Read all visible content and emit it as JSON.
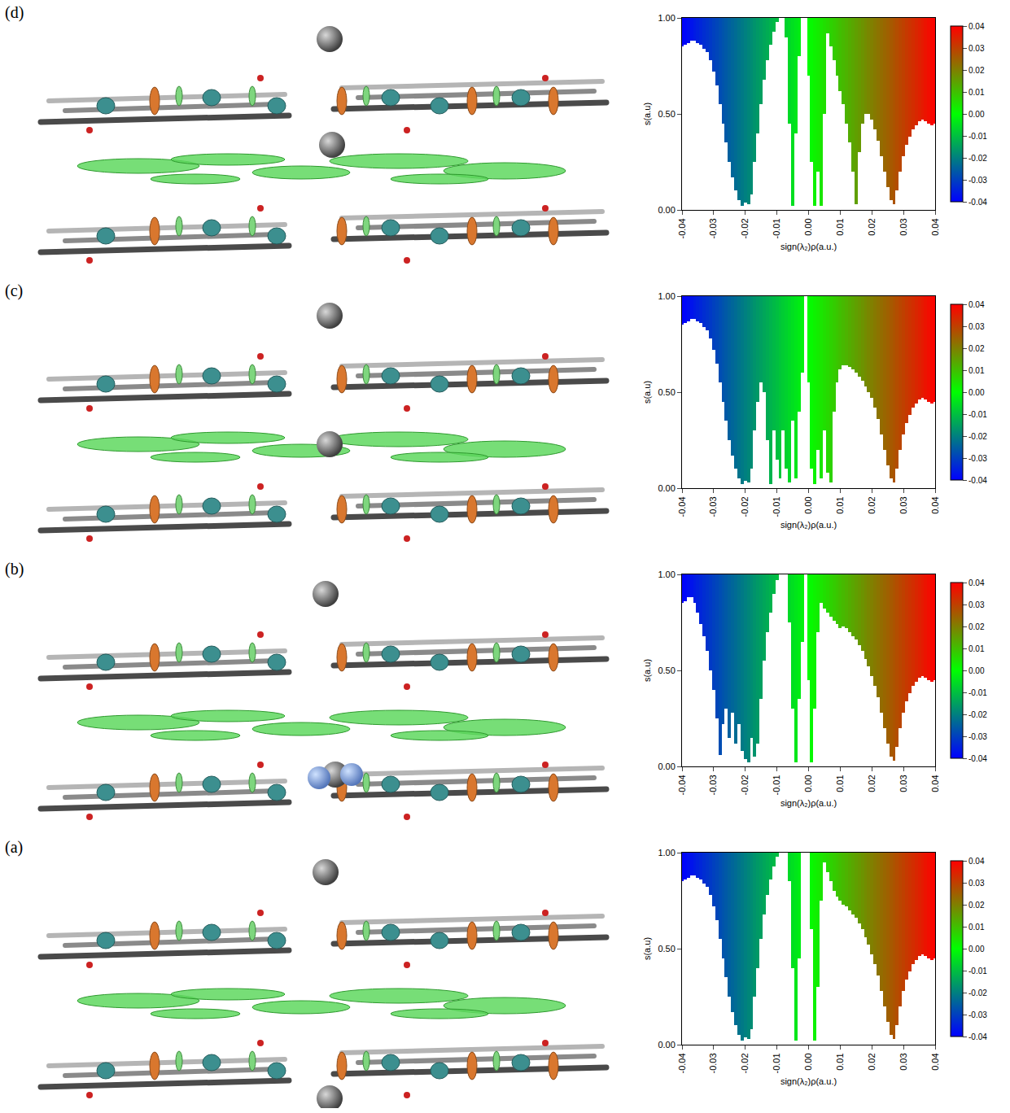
{
  "chart_data": [
    {
      "type": "scatter",
      "panel": "(d)",
      "x_label": "sign(λ₂)ρ(a.u.)",
      "y_label": "s(a.u)",
      "xlim": [
        -0.04,
        0.04
      ],
      "ylim": [
        0,
        1
      ],
      "grid": false,
      "xticks": [
        -0.04,
        -0.03,
        -0.02,
        -0.01,
        {
          "value": 0,
          "label": "0.00"
        },
        0.01,
        0.02,
        0.03,
        0.04
      ],
      "yticks": [
        {
          "value": 0,
          "label": "0.00"
        },
        {
          "value": 0.5,
          "label": "0.50"
        },
        {
          "value": 1,
          "label": "1.00"
        }
      ],
      "colorbar": {
        "range": [
          -0.04,
          0.04
        ],
        "ticks": [
          0.04,
          0.03,
          0.02,
          0.01,
          {
            "value": 0,
            "label": "0.00"
          },
          -0.01,
          -0.02,
          -0.03,
          -0.04
        ]
      },
      "x": [
        -0.04,
        -0.039,
        -0.038,
        -0.037,
        -0.036,
        -0.035,
        -0.034,
        -0.033,
        -0.032,
        -0.031,
        -0.03,
        -0.029,
        -0.028,
        -0.027,
        -0.026,
        -0.025,
        -0.024,
        -0.023,
        -0.022,
        -0.021,
        -0.02,
        -0.019,
        -0.018,
        -0.017,
        -0.016,
        -0.015,
        -0.014,
        -0.013,
        -0.012,
        -0.011,
        -0.01,
        -0.009,
        -0.008,
        -0.007,
        -0.006,
        -0.005,
        -0.004,
        -0.003,
        -0.002,
        -0.001,
        0,
        0.001,
        0.002,
        0.003,
        0.004,
        0.005,
        0.006,
        0.007,
        0.008,
        0.009,
        0.01,
        0.011,
        0.012,
        0.013,
        0.014,
        0.015,
        0.016,
        0.017,
        0.018,
        0.019,
        0.02,
        0.021,
        0.022,
        0.023,
        0.024,
        0.025,
        0.026,
        0.027,
        0.028,
        0.029,
        0.03,
        0.031,
        0.032,
        0.033,
        0.034,
        0.035,
        0.036,
        0.037,
        0.038,
        0.039,
        0.04
      ],
      "s_min": [
        0.85,
        0.86,
        0.87,
        0.88,
        0.88,
        0.87,
        0.86,
        0.84,
        0.82,
        0.78,
        0.72,
        0.65,
        0.55,
        0.45,
        0.35,
        0.25,
        0.17,
        0.1,
        0.05,
        0.02,
        0.04,
        0.03,
        0.08,
        0.25,
        0.4,
        0.55,
        0.68,
        0.78,
        0.86,
        0.93,
        0.98,
        null,
        null,
        0.9,
        0.45,
        0.02,
        0.4,
        0.8,
        null,
        null,
        0.7,
        0.25,
        0.02,
        0.2,
        0.02,
        0.5,
        0.92,
        0.85,
        0.78,
        0.7,
        0.62,
        0.55,
        0.45,
        0.35,
        0.2,
        0.03,
        0.3,
        0.45,
        0.5,
        0.5,
        0.47,
        0.42,
        0.36,
        0.28,
        0.2,
        0.12,
        0.05,
        0.03,
        0.1,
        0.2,
        0.28,
        0.34,
        0.38,
        0.42,
        0.44,
        0.46,
        0.47,
        0.46,
        0.45,
        0.44,
        0.45
      ]
    },
    {
      "type": "scatter",
      "panel": "(c)",
      "x_label": "sign(λ₂)ρ(a.u.)",
      "y_label": "s(a.u)",
      "xlim": [
        -0.04,
        0.04
      ],
      "ylim": [
        0,
        1
      ],
      "grid": false,
      "xticks": [
        -0.04,
        -0.03,
        -0.02,
        -0.01,
        {
          "value": 0,
          "label": "0.00"
        },
        0.01,
        0.02,
        0.03,
        0.04
      ],
      "yticks": [
        {
          "value": 0,
          "label": "0.00"
        },
        {
          "value": 0.5,
          "label": "0.50"
        },
        {
          "value": 1,
          "label": "1.00"
        }
      ],
      "colorbar": {
        "range": [
          -0.04,
          0.04
        ],
        "ticks": [
          0.04,
          0.03,
          0.02,
          0.01,
          {
            "value": 0,
            "label": "0.00"
          },
          -0.01,
          -0.02,
          -0.03,
          -0.04
        ]
      },
      "x": [
        -0.04,
        -0.039,
        -0.038,
        -0.037,
        -0.036,
        -0.035,
        -0.034,
        -0.033,
        -0.032,
        -0.031,
        -0.03,
        -0.029,
        -0.028,
        -0.027,
        -0.026,
        -0.025,
        -0.024,
        -0.023,
        -0.022,
        -0.021,
        -0.02,
        -0.019,
        -0.018,
        -0.017,
        -0.016,
        -0.015,
        -0.014,
        -0.013,
        -0.012,
        -0.011,
        -0.01,
        -0.009,
        -0.008,
        -0.007,
        -0.006,
        -0.005,
        -0.004,
        -0.003,
        -0.002,
        -0.001,
        0,
        0.001,
        0.002,
        0.003,
        0.004,
        0.005,
        0.006,
        0.007,
        0.008,
        0.009,
        0.01,
        0.011,
        0.012,
        0.013,
        0.014,
        0.015,
        0.016,
        0.017,
        0.018,
        0.019,
        0.02,
        0.021,
        0.022,
        0.023,
        0.024,
        0.025,
        0.026,
        0.027,
        0.028,
        0.029,
        0.03,
        0.031,
        0.032,
        0.033,
        0.034,
        0.035,
        0.036,
        0.037,
        0.038,
        0.039,
        0.04
      ],
      "s_min": [
        0.85,
        0.86,
        0.87,
        0.88,
        0.88,
        0.87,
        0.86,
        0.84,
        0.82,
        0.78,
        0.72,
        0.65,
        0.55,
        0.45,
        0.35,
        0.25,
        0.17,
        0.1,
        0.05,
        0.02,
        0.04,
        0.03,
        0.1,
        0.3,
        0.45,
        0.55,
        0.5,
        0.25,
        0.02,
        0.3,
        0.15,
        0.05,
        0.3,
        0.1,
        0.03,
        0.35,
        0.05,
        0.4,
        0.6,
        null,
        0.55,
        0.1,
        0.02,
        0.2,
        0.05,
        0.3,
        0.08,
        0.03,
        0.4,
        0.55,
        0.62,
        0.64,
        0.64,
        0.63,
        0.62,
        0.6,
        0.58,
        0.56,
        0.53,
        0.5,
        0.47,
        0.42,
        0.36,
        0.28,
        0.2,
        0.12,
        0.05,
        0.03,
        0.1,
        0.2,
        0.28,
        0.34,
        0.38,
        0.42,
        0.44,
        0.46,
        0.47,
        0.46,
        0.45,
        0.44,
        0.45
      ]
    },
    {
      "type": "scatter",
      "panel": "(b)",
      "x_label": "sign(λ₂)ρ(a.u.)",
      "y_label": "s(a.u)",
      "xlim": [
        -0.04,
        0.04
      ],
      "ylim": [
        0,
        1
      ],
      "grid": false,
      "xticks": [
        -0.04,
        -0.03,
        -0.02,
        -0.01,
        {
          "value": 0,
          "label": "0.00"
        },
        0.01,
        0.02,
        0.03,
        0.04
      ],
      "yticks": [
        {
          "value": 0,
          "label": "0.00"
        },
        {
          "value": 0.5,
          "label": "0.50"
        },
        {
          "value": 1,
          "label": "1.00"
        }
      ],
      "colorbar": {
        "range": [
          -0.04,
          0.04
        ],
        "ticks": [
          0.04,
          0.03,
          0.02,
          0.01,
          {
            "value": 0,
            "label": "0.00"
          },
          -0.01,
          -0.02,
          -0.03,
          -0.04
        ]
      },
      "x": [
        -0.04,
        -0.039,
        -0.038,
        -0.037,
        -0.036,
        -0.035,
        -0.034,
        -0.033,
        -0.032,
        -0.031,
        -0.03,
        -0.029,
        -0.028,
        -0.027,
        -0.026,
        -0.025,
        -0.024,
        -0.023,
        -0.022,
        -0.021,
        -0.02,
        -0.019,
        -0.018,
        -0.017,
        -0.016,
        -0.015,
        -0.014,
        -0.013,
        -0.012,
        -0.011,
        -0.01,
        -0.009,
        -0.008,
        -0.007,
        -0.006,
        -0.005,
        -0.004,
        -0.003,
        -0.002,
        -0.001,
        0,
        0.001,
        0.002,
        0.003,
        0.004,
        0.005,
        0.006,
        0.007,
        0.008,
        0.009,
        0.01,
        0.011,
        0.012,
        0.013,
        0.014,
        0.015,
        0.016,
        0.017,
        0.018,
        0.019,
        0.02,
        0.021,
        0.022,
        0.023,
        0.024,
        0.025,
        0.026,
        0.027,
        0.028,
        0.029,
        0.03,
        0.031,
        0.032,
        0.033,
        0.034,
        0.035,
        0.036,
        0.037,
        0.038,
        0.039,
        0.04
      ],
      "s_min": [
        0.85,
        0.86,
        0.88,
        0.88,
        0.85,
        0.8,
        0.74,
        0.68,
        0.6,
        0.5,
        0.4,
        0.25,
        0.06,
        0.22,
        0.3,
        0.15,
        0.28,
        0.12,
        0.22,
        0.08,
        0.04,
        0.02,
        0.15,
        0.05,
        0.12,
        0.35,
        0.55,
        0.7,
        0.8,
        0.9,
        0.97,
        null,
        null,
        null,
        0.75,
        0.3,
        0.02,
        0.35,
        0.65,
        null,
        0.45,
        0.02,
        0.3,
        0.7,
        0.85,
        0.82,
        0.8,
        0.78,
        0.76,
        0.74,
        0.72,
        0.73,
        0.72,
        0.7,
        0.68,
        0.66,
        0.63,
        0.6,
        0.56,
        0.52,
        0.47,
        0.42,
        0.36,
        0.28,
        0.2,
        0.12,
        0.05,
        0.03,
        0.1,
        0.2,
        0.28,
        0.34,
        0.38,
        0.42,
        0.44,
        0.46,
        0.47,
        0.46,
        0.45,
        0.44,
        0.45
      ]
    },
    {
      "type": "scatter",
      "panel": "(a)",
      "x_label": "sign(λ₂)ρ(a.u.)",
      "y_label": "s(a.u)",
      "xlim": [
        -0.04,
        0.04
      ],
      "ylim": [
        0,
        1
      ],
      "grid": false,
      "xticks": [
        -0.04,
        -0.03,
        -0.02,
        -0.01,
        {
          "value": 0,
          "label": "0.00"
        },
        0.01,
        0.02,
        0.03,
        0.04
      ],
      "yticks": [
        {
          "value": 0,
          "label": "0.00"
        },
        {
          "value": 0.5,
          "label": "0.50"
        },
        {
          "value": 1,
          "label": "1.00"
        }
      ],
      "colorbar": {
        "range": [
          -0.04,
          0.04
        ],
        "ticks": [
          0.04,
          0.03,
          0.02,
          0.01,
          {
            "value": 0,
            "label": "0.00"
          },
          -0.01,
          -0.02,
          -0.03,
          -0.04
        ]
      },
      "x": [
        -0.04,
        -0.039,
        -0.038,
        -0.037,
        -0.036,
        -0.035,
        -0.034,
        -0.033,
        -0.032,
        -0.031,
        -0.03,
        -0.029,
        -0.028,
        -0.027,
        -0.026,
        -0.025,
        -0.024,
        -0.023,
        -0.022,
        -0.021,
        -0.02,
        -0.019,
        -0.018,
        -0.017,
        -0.016,
        -0.015,
        -0.014,
        -0.013,
        -0.012,
        -0.011,
        -0.01,
        -0.009,
        -0.008,
        -0.007,
        -0.006,
        -0.005,
        -0.004,
        -0.003,
        -0.002,
        -0.001,
        0,
        0.001,
        0.002,
        0.003,
        0.004,
        0.005,
        0.006,
        0.007,
        0.008,
        0.009,
        0.01,
        0.011,
        0.012,
        0.013,
        0.014,
        0.015,
        0.016,
        0.017,
        0.018,
        0.019,
        0.02,
        0.021,
        0.022,
        0.023,
        0.024,
        0.025,
        0.026,
        0.027,
        0.028,
        0.029,
        0.03,
        0.031,
        0.032,
        0.033,
        0.034,
        0.035,
        0.036,
        0.037,
        0.038,
        0.039,
        0.04
      ],
      "s_min": [
        0.85,
        0.86,
        0.87,
        0.88,
        0.88,
        0.87,
        0.86,
        0.84,
        0.82,
        0.78,
        0.72,
        0.65,
        0.55,
        0.45,
        0.35,
        0.25,
        0.17,
        0.1,
        0.05,
        0.02,
        0.04,
        0.03,
        0.08,
        0.25,
        0.4,
        0.55,
        0.68,
        0.78,
        0.86,
        0.93,
        0.98,
        null,
        null,
        null,
        0.85,
        0.4,
        0.02,
        0.45,
        null,
        null,
        null,
        0.6,
        0.02,
        0.3,
        0.75,
        0.95,
        0.9,
        0.85,
        0.8,
        0.77,
        0.75,
        0.73,
        0.72,
        0.7,
        0.68,
        0.66,
        0.63,
        0.6,
        0.56,
        0.52,
        0.47,
        0.42,
        0.36,
        0.28,
        0.2,
        0.12,
        0.05,
        0.03,
        0.1,
        0.2,
        0.28,
        0.34,
        0.38,
        0.42,
        0.44,
        0.46,
        0.47,
        0.46,
        0.45,
        0.44,
        0.45
      ]
    }
  ]
}
